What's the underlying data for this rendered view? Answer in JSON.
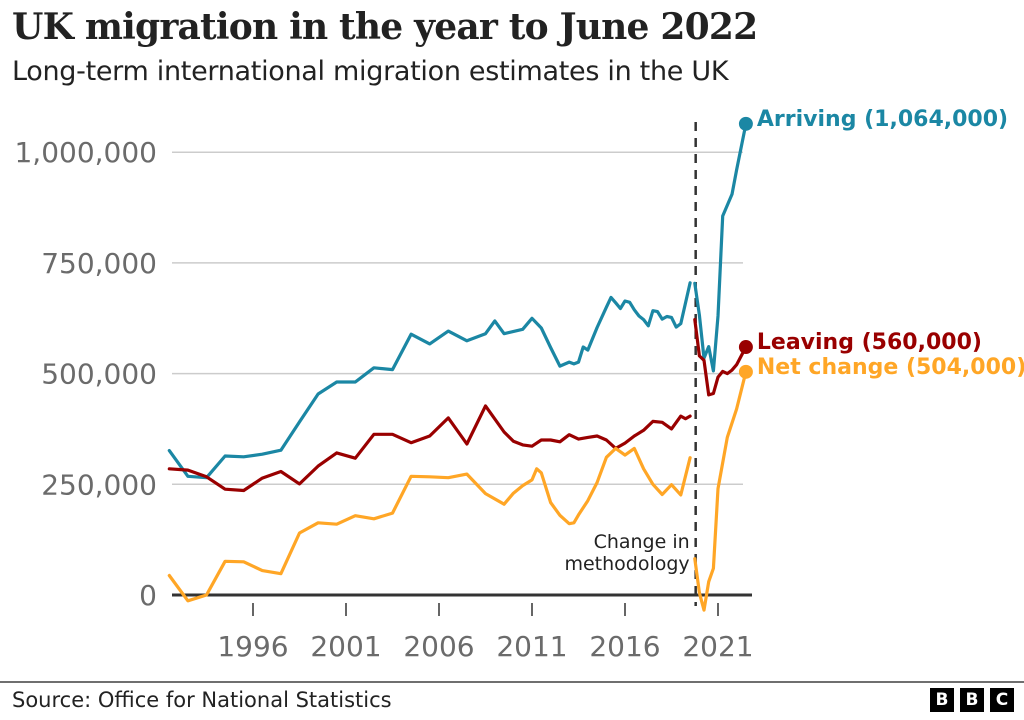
{
  "title": "UK migration in the year to June 2022",
  "subtitle": "Long-term international migration estimates in the UK",
  "source": "Source: Office for National Statistics",
  "logo": [
    "B",
    "B",
    "C"
  ],
  "chart_data": {
    "type": "line",
    "title": "UK migration in the year to June 2022",
    "subtitle": "Long-term international migration estimates in the UK",
    "xlabel": "",
    "ylabel": "",
    "xlim": [
      1991.6,
      2022.8
    ],
    "ylim": [
      0,
      1064000
    ],
    "grid": true,
    "x_ticks": [
      1996,
      2001,
      2006,
      2011,
      2016,
      2021
    ],
    "x_tick_labels": [
      "1996",
      "2001",
      "2006",
      "2011",
      "2016",
      "2021"
    ],
    "y_ticks": [
      0,
      250000,
      500000,
      750000,
      1000000
    ],
    "y_tick_labels": [
      "0",
      "250,000",
      "500,000",
      "750,000",
      "1,000,000"
    ],
    "legend": "direct-labels-right",
    "annotation": {
      "x": 2019.8,
      "lines": [
        "Change in",
        "methodology"
      ],
      "style": "dashed-vertical"
    },
    "series": [
      {
        "name": "Arriving",
        "label": "Arriving (1,064,000)",
        "color": "#1b87a4",
        "final_value": 1064000,
        "segments": [
          {
            "x": [
              1991.5,
              1992.5,
              1993.5,
              1994.5,
              1995.5,
              1996.5,
              1997.5,
              1998.5,
              1999.5,
              2000.5,
              2001.5,
              2002.5,
              2003.5,
              2004.5,
              2005.5,
              2006.5,
              2007.5,
              2008.5,
              2009.0,
              2009.5,
              2010.5,
              2011.0,
              2011.5,
              2012.0,
              2012.5,
              2013.0,
              2013.25,
              2013.5,
              2013.75,
              2014.0,
              2014.5,
              2015.0,
              2015.25,
              2015.5,
              2015.75,
              2016.0,
              2016.25,
              2016.5,
              2016.75,
              2017.0,
              2017.25,
              2017.5,
              2017.75,
              2018.0,
              2018.25,
              2018.5,
              2018.75,
              2019.0,
              2019.5
            ],
            "y": [
              326000,
              268000,
              265000,
              314000,
              312000,
              318000,
              327000,
              391000,
              454000,
              481000,
              481000,
              513000,
              509000,
              589000,
              567000,
              596000,
              574000,
              590000,
              619000,
              590000,
              600000,
              625000,
              603000,
              559000,
              517000,
              526000,
              522000,
              526000,
              560000,
              553000,
              604000,
              650000,
              672000,
              660000,
              647000,
              664000,
              661000,
              644000,
              630000,
              622000,
              608000,
              642000,
              640000,
              623000,
              629000,
              627000,
              605000,
              613000,
              705000
            ]
          },
          {
            "x": [
              2019.75,
              2020.0,
              2020.25,
              2020.5,
              2020.75,
              2021.0,
              2021.25,
              2021.5,
              2021.75,
              2022.0,
              2022.5
            ],
            "y": [
              704000,
              632000,
              535000,
              561000,
              506000,
              630000,
              856000,
              880000,
              905000,
              960000,
              1064000
            ]
          }
        ]
      },
      {
        "name": "Leaving",
        "label": "Leaving (560,000)",
        "color": "#990000",
        "final_value": 560000,
        "segments": [
          {
            "x": [
              1991.5,
              1992.5,
              1993.5,
              1994.5,
              1995.5,
              1996.5,
              1997.5,
              1998.5,
              1999.5,
              2000.5,
              2001.5,
              2002.5,
              2003.5,
              2004.5,
              2005.5,
              2006.5,
              2007.5,
              2008.5,
              2009.5,
              2010.0,
              2010.5,
              2011.0,
              2011.25,
              2011.5,
              2012.0,
              2012.5,
              2013.0,
              2013.5,
              2014.0,
              2014.5,
              2015.0,
              2015.5,
              2016.0,
              2016.5,
              2017.0,
              2017.5,
              2018.0,
              2018.5,
              2019.0,
              2019.25,
              2019.5
            ],
            "y": [
              285000,
              282000,
              267000,
              239000,
              236000,
              264000,
              279000,
              251000,
              291000,
              321000,
              309000,
              363000,
              363000,
              344000,
              359000,
              400000,
              341000,
              427000,
              368000,
              347000,
              339000,
              336000,
              343000,
              350000,
              350000,
              346000,
              362000,
              352000,
              356000,
              359000,
              350000,
              331000,
              343000,
              359000,
              372000,
              392000,
              390000,
              375000,
              404000,
              398000,
              404000
            ]
          },
          {
            "x": [
              2019.75,
              2020.0,
              2020.25,
              2020.5,
              2020.75,
              2021.0,
              2021.25,
              2021.5,
              2021.75,
              2022.0,
              2022.5
            ],
            "y": [
              622000,
              540000,
              530000,
              452000,
              455000,
              492000,
              505000,
              500000,
              508000,
              520000,
              560000
            ]
          }
        ]
      },
      {
        "name": "Net change",
        "label": "Net change (504,000)",
        "color": "#ffa626",
        "final_value": 504000,
        "segments": [
          {
            "x": [
              1991.5,
              1992.5,
              1993.5,
              1994.5,
              1995.5,
              1996.5,
              1997.5,
              1998.5,
              1999.5,
              2000.5,
              2001.5,
              2002.5,
              2003.5,
              2004.5,
              2005.5,
              2006.5,
              2007.5,
              2008.5,
              2009.5,
              2010.0,
              2010.5,
              2011.0,
              2011.25,
              2011.5,
              2012.0,
              2012.5,
              2013.0,
              2013.25,
              2013.5,
              2014.0,
              2014.5,
              2015.0,
              2015.5,
              2016.0,
              2016.5,
              2017.0,
              2017.5,
              2018.0,
              2018.5,
              2019.0,
              2019.5
            ],
            "y": [
              44000,
              -13000,
              0,
              76000,
              75000,
              55000,
              48000,
              140000,
              163000,
              160000,
              179000,
              172000,
              185000,
              268000,
              267000,
              265000,
              273000,
              229000,
              205000,
              230000,
              247000,
              260000,
              285000,
              276000,
              209000,
              180000,
              161000,
              163000,
              181000,
              213000,
              254000,
              311000,
              331000,
              316000,
              331000,
              285000,
              250000,
              227000,
              249000,
              226000,
              310000
            ]
          },
          {
            "x": [
              2019.75,
              2020.0,
              2020.25,
              2020.5,
              2020.75,
              2021.0,
              2021.5,
              2022.0,
              2022.5
            ],
            "y": [
              82000,
              5000,
              -34000,
              30000,
              60000,
              240000,
              356000,
              420000,
              504000
            ]
          }
        ]
      }
    ]
  }
}
